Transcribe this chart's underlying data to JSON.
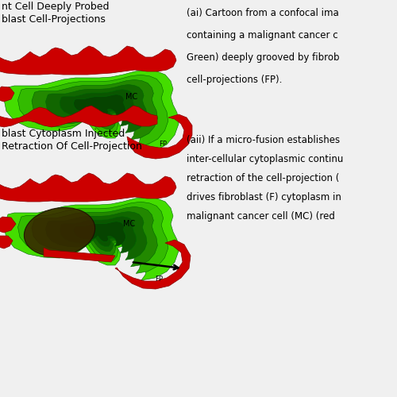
{
  "background_color": "#f0f0f0",
  "title_top": "nt Cell Deeply Probed\nblast Cell-Projections",
  "title_bottom": "blast Cytoplasm Injected\nRetraction Of Cell-Projection",
  "text_ai_lines": [
    "(ai) Cartoon from a confocal ima",
    "containing a malignant cancer c",
    "Green) deeply grooved by fibrob",
    "cell-projections (FP)."
  ],
  "text_aii_lines": [
    "(aii) If a micro-fusion establishes",
    "inter-cellular cytoplasmic continu",
    "retraction of the cell-projection (",
    "drives fibroblast (F) cytoplasm in",
    "malignant cancer cell (MC) (red"
  ],
  "green_bright": "#44dd00",
  "green_mid": "#33bb00",
  "green_med2": "#228800",
  "green_dark": "#116600",
  "green_darker": "#0a5500",
  "green_darkest": "#064400",
  "red_color": "#cc0000",
  "dark_brown": "#3a2200",
  "label_mc": "MC",
  "label_fp": "FP",
  "font_size_title": 9,
  "font_size_label": 7,
  "font_size_text": 8.5
}
